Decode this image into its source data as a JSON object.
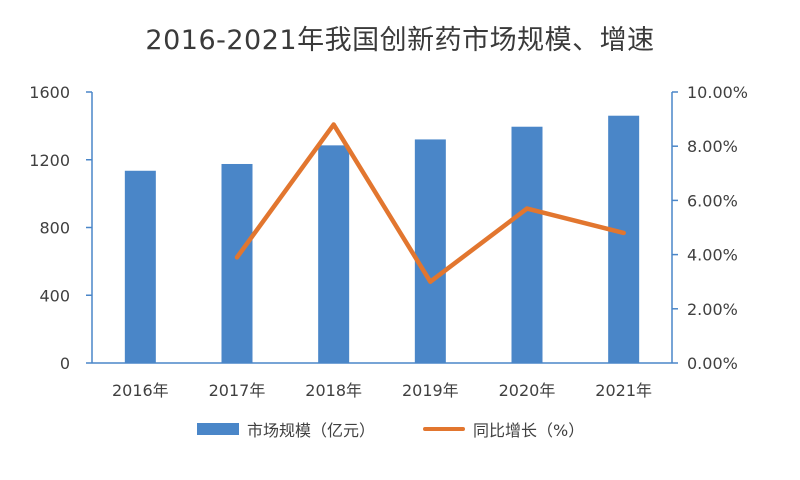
{
  "chart_data": {
    "type": "bar",
    "title": "2016-2021年我国创新药市场规模、增速",
    "categories": [
      "2016年",
      "2017年",
      "2018年",
      "2019年",
      "2020年",
      "2021年"
    ],
    "series": [
      {
        "name": "市场规模（亿元）",
        "type": "bar",
        "axis": "left",
        "color": "#4a86c8",
        "values": [
          1135,
          1175,
          1285,
          1320,
          1395,
          1460
        ]
      },
      {
        "name": "同比增长（%）",
        "type": "line",
        "axis": "right",
        "color": "#e2762f",
        "values": [
          null,
          3.9,
          8.8,
          3.0,
          5.7,
          4.8
        ]
      }
    ],
    "y_left": {
      "min": 0,
      "max": 1600,
      "ticks": [
        "0",
        "400",
        "800",
        "1200",
        "1600"
      ]
    },
    "y_right": {
      "min": 0,
      "max": 10,
      "ticks": [
        "0.00%",
        "2.00%",
        "4.00%",
        "6.00%",
        "8.00%",
        "10.00%"
      ]
    },
    "legend": [
      "市场规模（亿元）",
      "同比增长（%）"
    ],
    "legend_position": "bottom",
    "grid": false
  }
}
